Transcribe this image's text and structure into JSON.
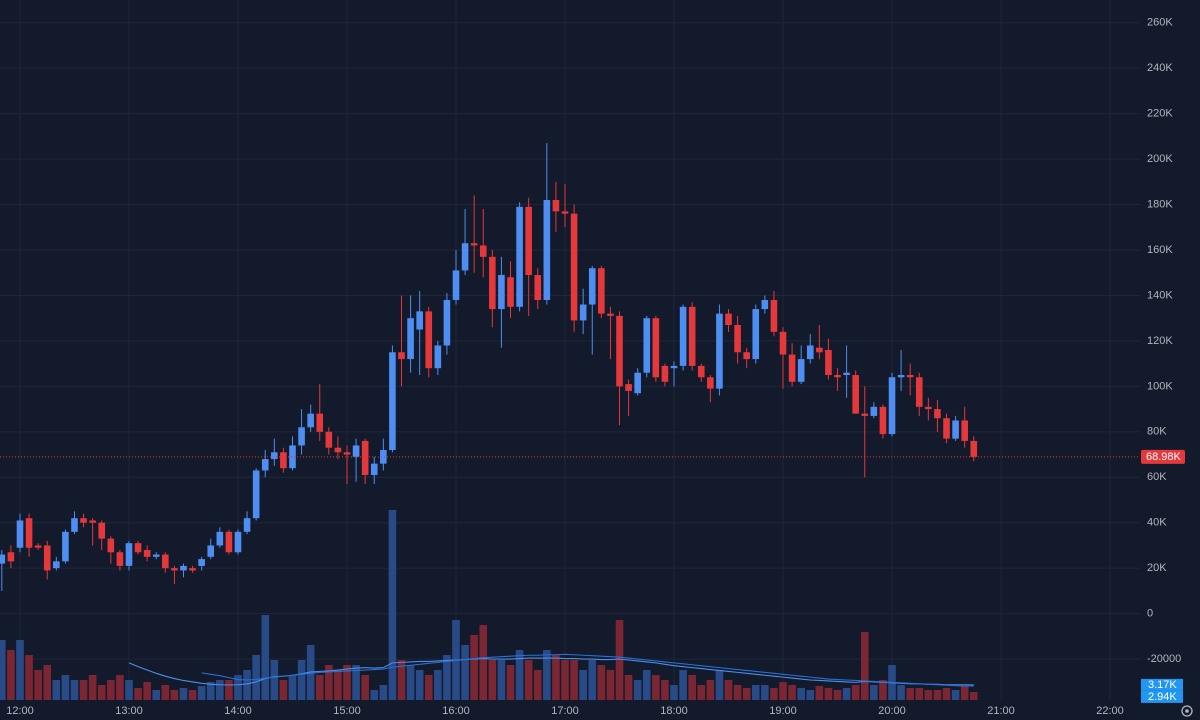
{
  "chart_data": {
    "type": "candlestick",
    "x": [
      710,
      715,
      720,
      725,
      730,
      735,
      740,
      745,
      750,
      755,
      760,
      765,
      770,
      775,
      780,
      785,
      790,
      795,
      800,
      805,
      810,
      815,
      820,
      825,
      830,
      835,
      840,
      845,
      850,
      855,
      860,
      865,
      870,
      875,
      880,
      885,
      890,
      895,
      900,
      905,
      910,
      915,
      920,
      925,
      930,
      935,
      940,
      945,
      950,
      955,
      960,
      965,
      970,
      975,
      980,
      985,
      990,
      995,
      1000,
      1005,
      1010,
      1015,
      1020,
      1025,
      1030,
      1035,
      1040,
      1045,
      1050,
      1055,
      1060,
      1065,
      1070,
      1075,
      1080,
      1085,
      1090,
      1095,
      1100,
      1105,
      1110,
      1115,
      1120,
      1125,
      1130,
      1135,
      1140,
      1145,
      1150,
      1155,
      1160,
      1165,
      1170,
      1175,
      1180,
      1185,
      1190,
      1195,
      1200,
      1205,
      1210,
      1215,
      1220,
      1225,
      1230,
      1235,
      1240,
      1245
    ],
    "xlim": [
      709,
      1336.5
    ],
    "xticks": [
      {
        "value": 720,
        "label": "12:00"
      },
      {
        "value": 780,
        "label": "13:00"
      },
      {
        "value": 840,
        "label": "14:00"
      },
      {
        "value": 900,
        "label": "15:00"
      },
      {
        "value": 960,
        "label": "16:00"
      },
      {
        "value": 1020,
        "label": "17:00"
      },
      {
        "value": 1080,
        "label": "18:00"
      },
      {
        "value": 1140,
        "label": "19:00"
      },
      {
        "value": 1200,
        "label": "20:00"
      },
      {
        "value": 1260,
        "label": "21:00"
      },
      {
        "value": 1320,
        "label": "22:00"
      }
    ],
    "ylim": [
      -38000,
      270000
    ],
    "yticks": [
      -20000,
      0,
      {
        "value": 20000,
        "label": "20K"
      },
      {
        "value": 40000,
        "label": "40K"
      },
      {
        "value": 60000,
        "label": "60K"
      },
      {
        "value": 80000,
        "label": "80K"
      },
      {
        "value": 100000,
        "label": "100K"
      },
      {
        "value": 120000,
        "label": "120K"
      },
      {
        "value": 140000,
        "label": "140K"
      },
      {
        "value": 160000,
        "label": "160K"
      },
      {
        "value": 180000,
        "label": "180K"
      },
      {
        "value": 200000,
        "label": "200K"
      },
      {
        "value": 220000,
        "label": "220K"
      },
      {
        "value": 240000,
        "label": "240K"
      },
      {
        "value": 260000,
        "label": "260K"
      }
    ],
    "grid": true,
    "open": [
      22000,
      27000,
      29000,
      42000,
      30000,
      30000,
      20000,
      23000,
      36000,
      42000,
      41000,
      40000,
      33000,
      27000,
      21000,
      31000,
      28000,
      25000,
      26000,
      20000,
      19000,
      20000,
      21000,
      25000,
      30000,
      36000,
      27000,
      36000,
      42000,
      63000,
      68000,
      71000,
      64000,
      74000,
      82000,
      88000,
      80000,
      73000,
      71000,
      69000,
      76000,
      61000,
      66000,
      72000,
      115000,
      112000,
      125000,
      133000,
      108000,
      118000,
      138000,
      151000,
      163000,
      162000,
      157000,
      134000,
      148000,
      135000,
      179000,
      149000,
      138000,
      182000,
      177000,
      176000,
      129000,
      136000,
      152000,
      132000,
      131000,
      101000,
      97000,
      106000,
      130000,
      109000,
      108000,
      109000,
      135000,
      109000,
      104000,
      99000,
      132000,
      127000,
      115000,
      112000,
      134000,
      138000,
      124000,
      114000,
      102000,
      112000,
      117000,
      116000,
      105000,
      105000,
      105000,
      88000,
      87000,
      91000,
      79000,
      104000,
      105000,
      104000,
      91000,
      90000,
      86000,
      77000,
      85000,
      76000
    ],
    "high": [
      28000,
      30000,
      44000,
      44000,
      31000,
      32000,
      25000,
      37000,
      45000,
      44000,
      42000,
      41000,
      34000,
      28000,
      32000,
      32000,
      30000,
      27000,
      27000,
      21000,
      22000,
      21000,
      25000,
      33000,
      38000,
      37000,
      37000,
      45000,
      64000,
      72000,
      77000,
      73000,
      78000,
      90000,
      92000,
      101000,
      82000,
      78000,
      74000,
      77000,
      77000,
      69000,
      77000,
      118000,
      140000,
      140000,
      142000,
      135000,
      120000,
      141000,
      160000,
      178000,
      184000,
      178000,
      160000,
      157000,
      155000,
      181000,
      183000,
      152000,
      207000,
      190000,
      189000,
      180000,
      143000,
      153000,
      153000,
      135000,
      133000,
      103000,
      108000,
      131000,
      131000,
      110000,
      111000,
      136000,
      137000,
      110000,
      105000,
      136000,
      134000,
      131000,
      117000,
      136000,
      140000,
      142000,
      126000,
      119000,
      118000,
      123000,
      127000,
      121000,
      108000,
      118000,
      107000,
      100000,
      93000,
      92000,
      106000,
      116000,
      110000,
      106000,
      95000,
      94000,
      88000,
      87000,
      91000,
      78000
    ],
    "low": [
      10000,
      20000,
      27000,
      25000,
      28000,
      15000,
      19000,
      22000,
      35000,
      38000,
      30000,
      28000,
      22000,
      19000,
      19000,
      26000,
      23000,
      24000,
      18000,
      13000,
      16000,
      18000,
      19000,
      24000,
      29000,
      26000,
      26000,
      35000,
      41000,
      60000,
      65000,
      62000,
      63000,
      70000,
      80000,
      76000,
      70000,
      68000,
      57000,
      58000,
      57000,
      57000,
      63000,
      71000,
      100000,
      106000,
      105000,
      104000,
      105000,
      114000,
      136000,
      149000,
      150000,
      148000,
      126000,
      117000,
      130000,
      133000,
      131000,
      134000,
      136000,
      168000,
      170000,
      124000,
      123000,
      114000,
      130000,
      112000,
      83000,
      87000,
      96000,
      104000,
      102000,
      100000,
      100000,
      107000,
      107000,
      102000,
      93000,
      96000,
      124000,
      110000,
      108000,
      110000,
      132000,
      122000,
      99000,
      100000,
      101000,
      110000,
      112000,
      103000,
      98000,
      95000,
      88000,
      60000,
      86000,
      77000,
      78000,
      98000,
      96000,
      87000,
      85000,
      80000,
      75000,
      76000,
      73000,
      67000
    ],
    "close": [
      26000,
      23000,
      41000,
      29000,
      29000,
      19000,
      23000,
      36000,
      42000,
      40000,
      40000,
      33000,
      27000,
      21000,
      31000,
      27000,
      25000,
      26000,
      20000,
      19000,
      21000,
      19000,
      24000,
      30000,
      36000,
      27000,
      36000,
      42000,
      63000,
      68000,
      71000,
      64000,
      74000,
      82000,
      88000,
      80000,
      73000,
      71000,
      70000,
      74000,
      61000,
      66000,
      72000,
      115000,
      112000,
      130000,
      133000,
      108000,
      118000,
      138000,
      151000,
      163000,
      162000,
      157000,
      134000,
      149000,
      135000,
      179000,
      149000,
      138000,
      182000,
      177000,
      176000,
      129000,
      136000,
      152000,
      132000,
      131000,
      100000,
      98000,
      106000,
      130000,
      104000,
      102000,
      109000,
      135000,
      109000,
      104000,
      99000,
      132000,
      127000,
      115000,
      112000,
      134000,
      138000,
      124000,
      114000,
      102000,
      112000,
      118000,
      115000,
      105000,
      104000,
      106000,
      88000,
      87000,
      91000,
      79000,
      104000,
      105000,
      104000,
      91000,
      90000,
      86000,
      77000,
      85000,
      76000,
      68980
    ],
    "up_color": "#4e8ef2",
    "down_color": "#e5383b",
    "volume": [
      12600,
      10500,
      12600,
      9450,
      6300,
      7350,
      4200,
      5250,
      4200,
      4200,
      5250,
      3150,
      4200,
      5250,
      4200,
      2520,
      3780,
      2100,
      3150,
      2100,
      2520,
      2100,
      2940,
      3780,
      4200,
      4200,
      5250,
      6300,
      9450,
      17850,
      8400,
      4200,
      5250,
      8400,
      11550,
      5250,
      7350,
      6300,
      7350,
      7350,
      5250,
      2100,
      3150,
      39900,
      8400,
      7350,
      6300,
      5250,
      6300,
      9450,
      16800,
      11550,
      13650,
      15750,
      8400,
      8400,
      7350,
      10500,
      8400,
      6300,
      10500,
      9450,
      8400,
      8400,
      6300,
      8400,
      7350,
      6300,
      16800,
      5250,
      4200,
      6300,
      5250,
      4200,
      3150,
      6300,
      5250,
      3150,
      4200,
      6300,
      4200,
      3150,
      2520,
      3150,
      3150,
      2520,
      3780,
      3150,
      2520,
      2100,
      2940,
      2520,
      2100,
      2520,
      3150,
      14280,
      3150,
      4200,
      7350,
      3150,
      2520,
      2520,
      2100,
      2100,
      2520,
      2100,
      2940,
      1680
    ],
    "y2lim": [
      0,
      147000
    ],
    "volume_up_color": "#284a86",
    "volume_down_color": "#7a2633",
    "moving_averages": [
      {
        "color": "#4a8fea",
        "last_label": "3.17K",
        "values": [
          null,
          null,
          null,
          null,
          null,
          null,
          null,
          null,
          null,
          null,
          null,
          null,
          null,
          null,
          7800,
          7000,
          6300,
          5600,
          5000,
          4500,
          4100,
          3800,
          3500,
          3300,
          3200,
          3150,
          3200,
          3400,
          3800,
          4500,
          4900,
          5000,
          5200,
          5500,
          5900,
          6000,
          6100,
          6300,
          6500,
          6700,
          6800,
          6700,
          6800,
          7800,
          7900,
          8000,
          8100,
          8100,
          8200,
          8300,
          8400,
          8500,
          8600,
          8700,
          8600,
          8600,
          8600,
          8700,
          8800,
          8800,
          8800,
          8800,
          8700,
          8700,
          8600,
          8600,
          8500,
          8500,
          8600,
          8400,
          8200,
          8000,
          7800,
          7500,
          7200,
          7000,
          6800,
          6600,
          6400,
          6200,
          6000,
          5800,
          5600,
          5400,
          5200,
          5000,
          4800,
          4600,
          4400,
          4200,
          4100,
          4000,
          3900,
          3800,
          3700,
          3900,
          3800,
          3700,
          3600,
          3500,
          3400,
          3400,
          3300,
          3300,
          3200,
          3200,
          3200,
          3170
        ]
      },
      {
        "color": "#2a6fd6",
        "last_label": "2.94K",
        "values": [
          null,
          null,
          null,
          null,
          null,
          null,
          null,
          null,
          null,
          null,
          null,
          null,
          null,
          null,
          null,
          null,
          null,
          null,
          null,
          null,
          null,
          null,
          5700,
          5400,
          5100,
          4700,
          4300,
          4200,
          4300,
          4600,
          4800,
          5000,
          5200,
          5400,
          5600,
          5800,
          5900,
          6000,
          6100,
          6200,
          6300,
          6400,
          6500,
          6900,
          7100,
          7300,
          7500,
          7700,
          7900,
          8100,
          8300,
          8500,
          8700,
          8900,
          9000,
          9100,
          9200,
          9300,
          9400,
          9400,
          9500,
          9500,
          9600,
          9500,
          9400,
          9300,
          9200,
          9100,
          9000,
          8800,
          8600,
          8400,
          8200,
          8000,
          7800,
          7600,
          7400,
          7200,
          7000,
          6800,
          6600,
          6400,
          6200,
          6000,
          5800,
          5600,
          5400,
          5200,
          5000,
          4800,
          4600,
          4400,
          4300,
          4200,
          4100,
          4000,
          3900,
          3800,
          3700,
          3600,
          3500,
          3400,
          3300,
          3200,
          3100,
          3000,
          2950,
          2940
        ]
      }
    ],
    "badge_color": "#2196f3",
    "last_price_label": "68.98K",
    "last_price_color": "#e5383b"
  }
}
